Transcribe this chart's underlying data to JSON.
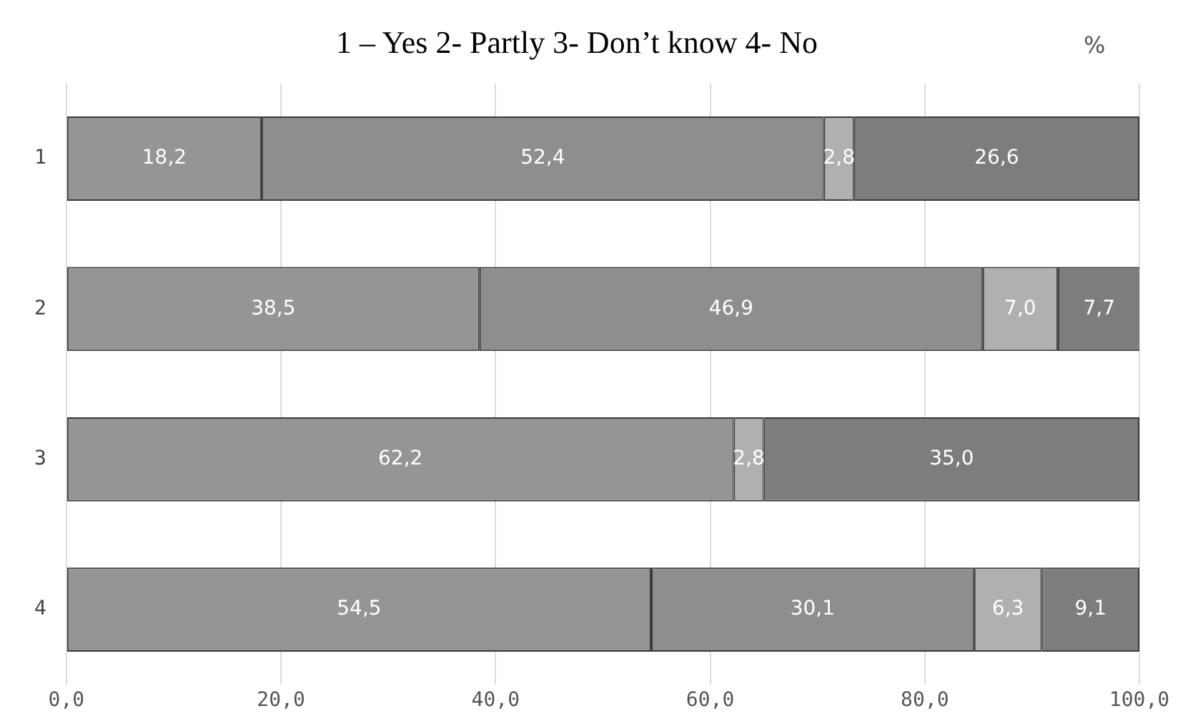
{
  "chart_data": {
    "type": "bar",
    "orientation": "horizontal",
    "stacked": true,
    "title": "1 – Yes 2- Partly 3- Don’t know 4- No",
    "annotations": [
      "%"
    ],
    "categories": [
      "1",
      "2",
      "3",
      "4"
    ],
    "series": [
      {
        "color": "#959595",
        "values": [
          18.2,
          38.5,
          62.2,
          54.5
        ],
        "value_labels": [
          "18,2",
          "38,5",
          "62,2",
          "54,5"
        ]
      },
      {
        "color": "#8e8e8e",
        "values": [
          52.4,
          46.9,
          null,
          30.1
        ],
        "value_labels": [
          "52,4",
          "46,9",
          null,
          "30,1"
        ]
      },
      {
        "color": "#b0b0b0",
        "values": [
          2.8,
          7.0,
          2.8,
          6.3
        ],
        "value_labels": [
          "2,8",
          "7,0",
          "2,8",
          "6,3"
        ]
      },
      {
        "color": "#7d7d7d",
        "values": [
          26.6,
          7.7,
          35.0,
          9.1
        ],
        "value_labels": [
          "26,6",
          "7,7",
          "35,0",
          "9,1"
        ]
      }
    ],
    "xlim": [
      0,
      100
    ],
    "xticks": [
      {
        "value": 0,
        "label": "0,0"
      },
      {
        "value": 20,
        "label": "20,0"
      },
      {
        "value": 40,
        "label": "40,0"
      },
      {
        "value": 60,
        "label": "60,0"
      },
      {
        "value": 80,
        "label": "80,0"
      },
      {
        "value": 100,
        "label": "100,0"
      }
    ],
    "grid": "x",
    "legend": false
  }
}
